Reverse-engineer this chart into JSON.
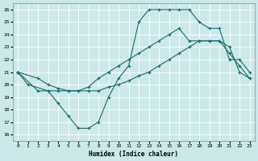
{
  "xlabel": "Humidex (Indice chaleur)",
  "bg_color": "#cce8e8",
  "grid_color": "#ffffff",
  "line_color": "#1a6b6b",
  "xlim": [
    -0.5,
    23.5
  ],
  "ylim": [
    15.5,
    26.5
  ],
  "xticks": [
    0,
    1,
    2,
    3,
    4,
    5,
    6,
    7,
    8,
    9,
    10,
    11,
    12,
    13,
    14,
    15,
    16,
    17,
    18,
    19,
    20,
    21,
    22,
    23
  ],
  "yticks": [
    16,
    17,
    18,
    19,
    20,
    21,
    22,
    23,
    24,
    25,
    26
  ],
  "curve1_x": [
    0,
    1,
    3,
    4,
    5,
    6,
    7,
    8,
    9,
    10,
    11,
    12,
    13,
    14,
    15,
    16,
    17,
    18,
    19,
    20,
    21,
    22,
    23
  ],
  "curve1_y": [
    21.0,
    20.0,
    19.5,
    18.5,
    17.5,
    16.5,
    16.5,
    17.0,
    19.0,
    20.5,
    21.5,
    25.0,
    26.0,
    26.0,
    26.0,
    26.0,
    26.0,
    25.0,
    24.5,
    24.5,
    22.0,
    22.0,
    21.0
  ],
  "curve2_x": [
    0,
    2,
    3,
    4,
    5,
    6,
    7,
    8,
    9,
    10,
    11,
    12,
    13,
    14,
    15,
    16,
    17,
    18,
    19,
    20,
    21,
    22,
    23
  ],
  "curve2_y": [
    21.0,
    20.5,
    20.0,
    19.7,
    19.5,
    19.5,
    19.8,
    20.5,
    21.0,
    21.5,
    22.0,
    22.5,
    23.0,
    23.5,
    24.0,
    24.5,
    23.5,
    23.5,
    23.5,
    23.5,
    22.5,
    21.5,
    20.5
  ],
  "curve3_x": [
    0,
    2,
    3,
    4,
    5,
    6,
    7,
    8,
    9,
    10,
    11,
    12,
    13,
    14,
    15,
    16,
    17,
    18,
    19,
    20,
    21,
    22,
    23
  ],
  "curve3_y": [
    21.0,
    19.5,
    19.5,
    19.5,
    19.5,
    19.5,
    19.5,
    19.5,
    19.8,
    20.0,
    20.3,
    20.7,
    21.0,
    21.5,
    22.0,
    22.5,
    23.0,
    23.5,
    23.5,
    23.5,
    23.0,
    21.0,
    20.5
  ]
}
